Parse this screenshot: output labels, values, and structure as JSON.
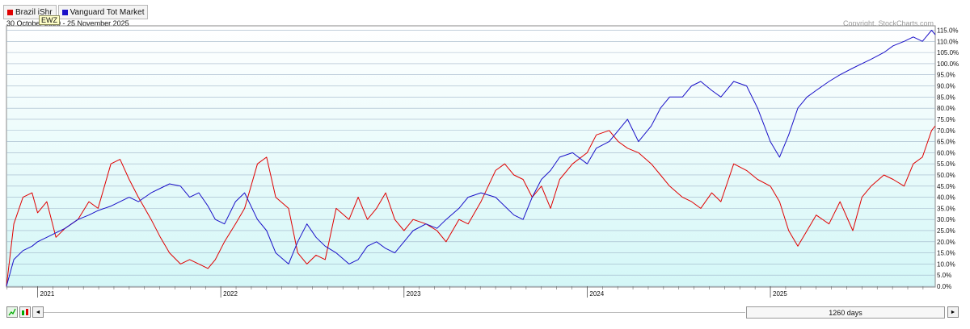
{
  "legend": [
    {
      "label": "Brazil iShr",
      "color": "#e00000"
    },
    {
      "label": "Vanguard Tot Market",
      "color": "#1a10c8"
    }
  ],
  "date_range_text": "30 October 2020 - 25 November 2025",
  "tooltip_text": "EWZ",
  "copyright": "Copyright, StockCharts.com",
  "bottom_bar": {
    "left_arrow": "◄",
    "right_arrow": "►",
    "period_label": "1260 days"
  },
  "chart_data": {
    "type": "line",
    "xlabel": "",
    "ylabel": "",
    "x_ticks": [
      "2021",
      "2022",
      "2023",
      "2024",
      "2025"
    ],
    "y_ticks": [
      "0.0%",
      "5.0%",
      "10.0%",
      "15.0%",
      "20.0%",
      "25.0%",
      "30.0%",
      "35.0%",
      "40.0%",
      "45.0%",
      "50.0%",
      "55.0%",
      "60.0%",
      "65.0%",
      "70.0%",
      "75.0%",
      "80.0%",
      "85.0%",
      "90.0%",
      "95.0%",
      "100.0%",
      "105.0%",
      "110.0%",
      "115.0%"
    ],
    "ylim": [
      0,
      117
    ],
    "xlim": [
      2020.83,
      2025.9
    ],
    "x_tick_values": [
      2021.0,
      2022.0,
      2023.0,
      2024.0,
      2025.0
    ],
    "legend_position": "top-left",
    "grid": true,
    "series": [
      {
        "name": "Brazil iShr",
        "color": "#e00000",
        "x": [
          2020.83,
          2020.87,
          2020.92,
          2020.97,
          2021.0,
          2021.05,
          2021.1,
          2021.15,
          2021.22,
          2021.28,
          2021.33,
          2021.4,
          2021.45,
          2021.5,
          2021.55,
          2021.62,
          2021.67,
          2021.72,
          2021.78,
          2021.83,
          2021.88,
          2021.93,
          2021.97,
          2022.02,
          2022.08,
          2022.13,
          2022.2,
          2022.25,
          2022.3,
          2022.37,
          2022.42,
          2022.47,
          2022.52,
          2022.57,
          2022.63,
          2022.7,
          2022.75,
          2022.8,
          2022.85,
          2022.9,
          2022.95,
          2023.0,
          2023.05,
          2023.12,
          2023.18,
          2023.23,
          2023.3,
          2023.35,
          2023.42,
          2023.5,
          2023.55,
          2023.6,
          2023.65,
          2023.7,
          2023.75,
          2023.8,
          2023.85,
          2023.92,
          2024.0,
          2024.05,
          2024.12,
          2024.17,
          2024.22,
          2024.28,
          2024.35,
          2024.4,
          2024.45,
          2024.52,
          2024.57,
          2024.62,
          2024.68,
          2024.73,
          2024.8,
          2024.87,
          2024.93,
          2025.0,
          2025.05,
          2025.1,
          2025.15,
          2025.2,
          2025.25,
          2025.32,
          2025.38,
          2025.45,
          2025.5,
          2025.55,
          2025.62,
          2025.67,
          2025.73,
          2025.78,
          2025.83,
          2025.88,
          2025.9
        ],
        "values": [
          0,
          28,
          40,
          42,
          33,
          38,
          22,
          26,
          30,
          38,
          35,
          55,
          57,
          48,
          40,
          30,
          22,
          15,
          10,
          12,
          10,
          8,
          12,
          20,
          28,
          35,
          55,
          58,
          40,
          35,
          15,
          10,
          14,
          12,
          35,
          30,
          40,
          30,
          35,
          42,
          30,
          25,
          30,
          28,
          25,
          20,
          30,
          28,
          38,
          52,
          55,
          50,
          48,
          40,
          45,
          35,
          48,
          55,
          60,
          68,
          70,
          65,
          62,
          60,
          55,
          50,
          45,
          40,
          38,
          35,
          42,
          38,
          55,
          52,
          48,
          45,
          38,
          25,
          18,
          25,
          32,
          28,
          38,
          25,
          40,
          45,
          50,
          48,
          45,
          55,
          58,
          70,
          72
        ]
      },
      {
        "name": "Vanguard Tot Market",
        "color": "#1a10c8",
        "x": [
          2020.83,
          2020.87,
          2020.92,
          2020.97,
          2021.0,
          2021.05,
          2021.1,
          2021.15,
          2021.22,
          2021.28,
          2021.33,
          2021.4,
          2021.45,
          2021.5,
          2021.55,
          2021.62,
          2021.67,
          2021.72,
          2021.78,
          2021.83,
          2021.88,
          2021.93,
          2021.97,
          2022.02,
          2022.08,
          2022.13,
          2022.2,
          2022.25,
          2022.3,
          2022.37,
          2022.42,
          2022.47,
          2022.52,
          2022.57,
          2022.63,
          2022.7,
          2022.75,
          2022.8,
          2022.85,
          2022.9,
          2022.95,
          2023.0,
          2023.05,
          2023.12,
          2023.18,
          2023.23,
          2023.3,
          2023.35,
          2023.42,
          2023.5,
          2023.55,
          2023.6,
          2023.65,
          2023.7,
          2023.75,
          2023.8,
          2023.85,
          2023.92,
          2024.0,
          2024.05,
          2024.12,
          2024.17,
          2024.22,
          2024.28,
          2024.35,
          2024.4,
          2024.45,
          2024.52,
          2024.57,
          2024.62,
          2024.68,
          2024.73,
          2024.8,
          2024.87,
          2024.93,
          2025.0,
          2025.05,
          2025.1,
          2025.15,
          2025.2,
          2025.25,
          2025.32,
          2025.38,
          2025.45,
          2025.5,
          2025.55,
          2025.62,
          2025.67,
          2025.73,
          2025.78,
          2025.83,
          2025.88,
          2025.9
        ],
        "values": [
          0,
          12,
          16,
          18,
          20,
          22,
          24,
          26,
          30,
          32,
          34,
          36,
          38,
          40,
          38,
          42,
          44,
          46,
          45,
          40,
          42,
          36,
          30,
          28,
          38,
          42,
          30,
          25,
          15,
          10,
          20,
          28,
          22,
          18,
          15,
          10,
          12,
          18,
          20,
          17,
          15,
          20,
          25,
          28,
          26,
          30,
          35,
          40,
          42,
          40,
          36,
          32,
          30,
          40,
          48,
          52,
          58,
          60,
          55,
          62,
          65,
          70,
          75,
          65,
          72,
          80,
          85,
          85,
          90,
          92,
          88,
          85,
          92,
          90,
          80,
          65,
          58,
          68,
          80,
          85,
          88,
          92,
          95,
          98,
          100,
          102,
          105,
          108,
          110,
          112,
          110,
          115,
          113
        ]
      }
    ]
  }
}
